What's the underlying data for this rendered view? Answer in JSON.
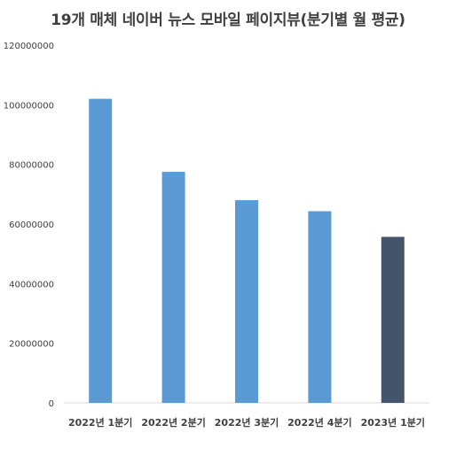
{
  "chart_data": {
    "type": "bar",
    "title": "19개 매체 네이버 뉴스 모바일 페이지뷰(분기별 월 평균)",
    "categories": [
      "2022년 1분기",
      "2022년 2분기",
      "2022년 3분기",
      "2022년 4분기",
      "2023년 1분기"
    ],
    "values": [
      102000000,
      77500000,
      68000000,
      64300000,
      55700000
    ],
    "ylim": [
      0,
      120000000
    ],
    "yticks": [
      "0",
      "20000000",
      "40000000",
      "60000000",
      "80000000",
      "100000000",
      "120000000"
    ],
    "ytick_values": [
      0,
      20000000,
      40000000,
      60000000,
      80000000,
      100000000,
      120000000
    ],
    "bar_colors": [
      "#5b9bd5",
      "#5b9bd5",
      "#5b9bd5",
      "#5b9bd5",
      "#44546a"
    ],
    "grid": false,
    "xlabel": "",
    "ylabel": ""
  }
}
